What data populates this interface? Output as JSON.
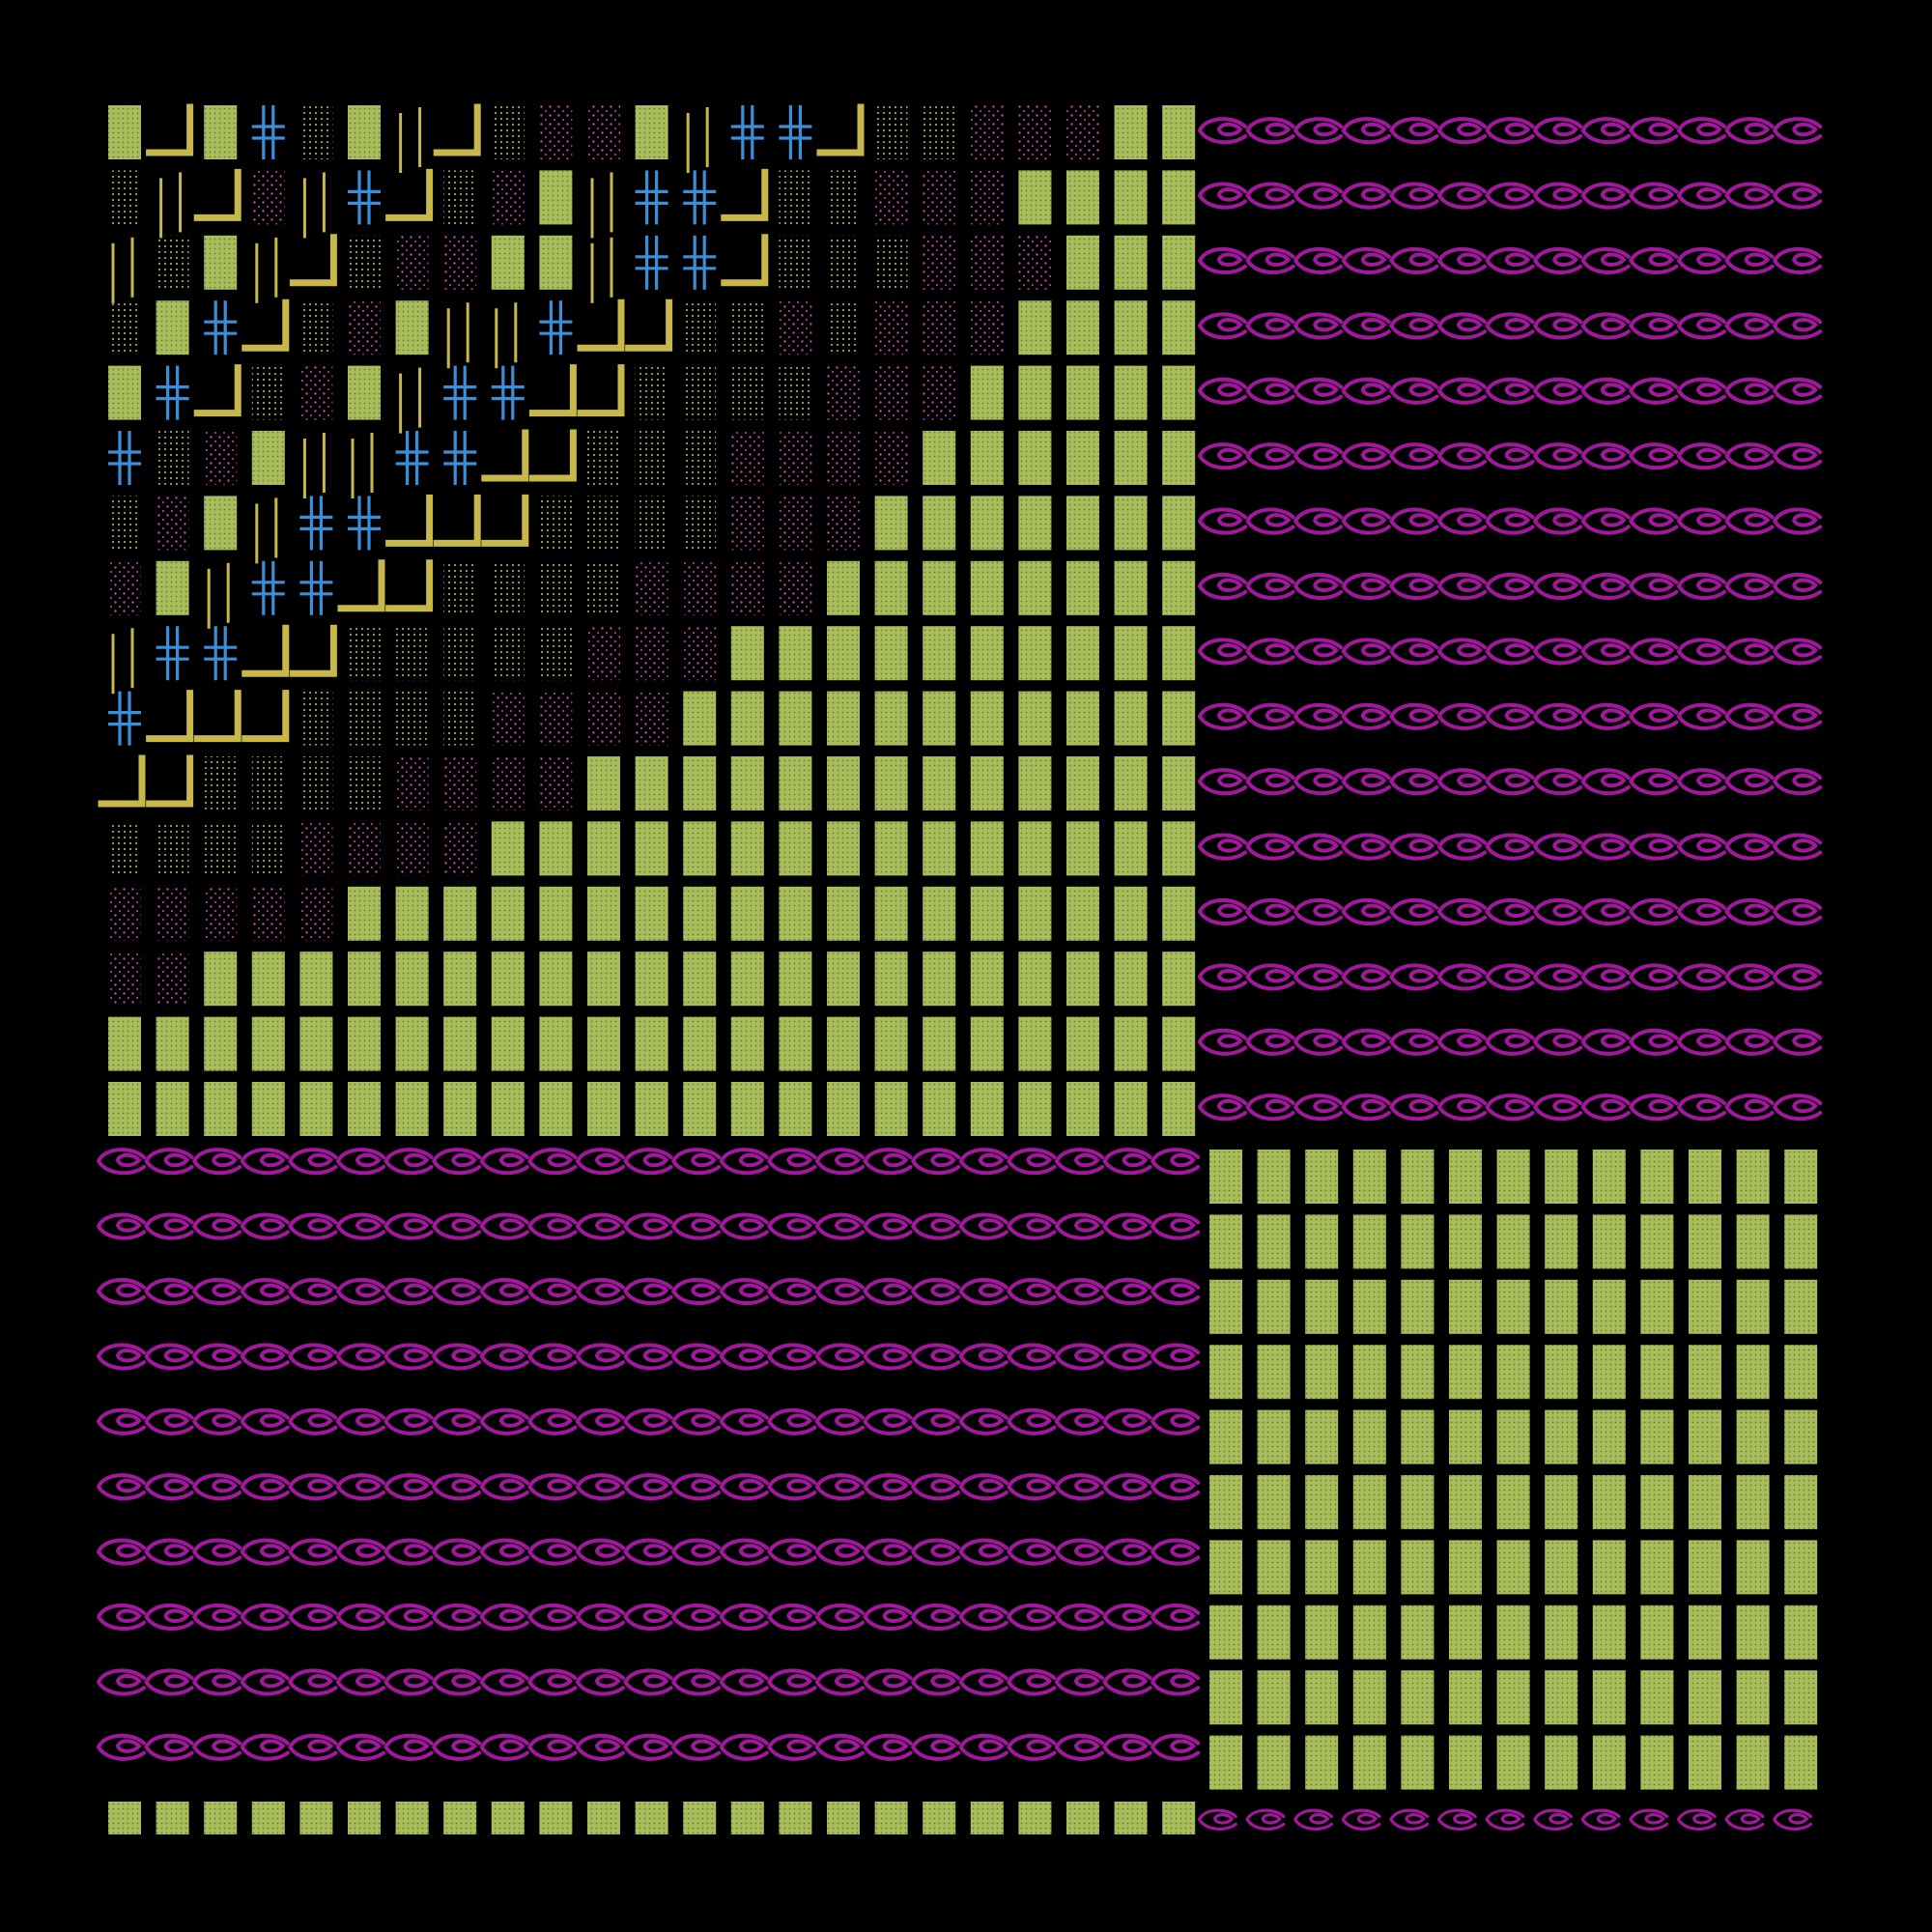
{
  "palette": {
    "background": "#000000",
    "green_block": "#a8bd5c",
    "olive_dots": "#9aa464",
    "magenta_dots": "#c44aa8",
    "blue_glyph": "#3b8ed8",
    "yellow_stroke": "#c8b84a",
    "purple_glyph": "#a2189c"
  },
  "glyph_names": [
    "green-dotted-block",
    "olive-dot-shade",
    "magenta-dot-shade",
    "blue-double-cross-icon",
    "yellow-l-corner-stroke",
    "yellow-vertical-bars",
    "purple-swirl-glyph"
  ],
  "regions": [
    {
      "name": "top-left-staircase",
      "contents": [
        "green-dotted-block",
        "olive-dot-shade",
        "magenta-dot-shade",
        "blue-double-cross-icon",
        "yellow-l-corner-stroke",
        "yellow-vertical-bars"
      ]
    },
    {
      "name": "top-right-swirls",
      "contents": [
        "purple-swirl-glyph"
      ]
    },
    {
      "name": "bottom-left-swirls",
      "contents": [
        "purple-swirl-glyph"
      ]
    },
    {
      "name": "bottom-right-blocks",
      "contents": [
        "green-dotted-block"
      ]
    },
    {
      "name": "bottom-left-block-strip",
      "contents": [
        "green-dotted-block"
      ]
    },
    {
      "name": "bottom-right-swirl-strip",
      "contents": [
        "purple-swirl-glyph"
      ]
    }
  ]
}
